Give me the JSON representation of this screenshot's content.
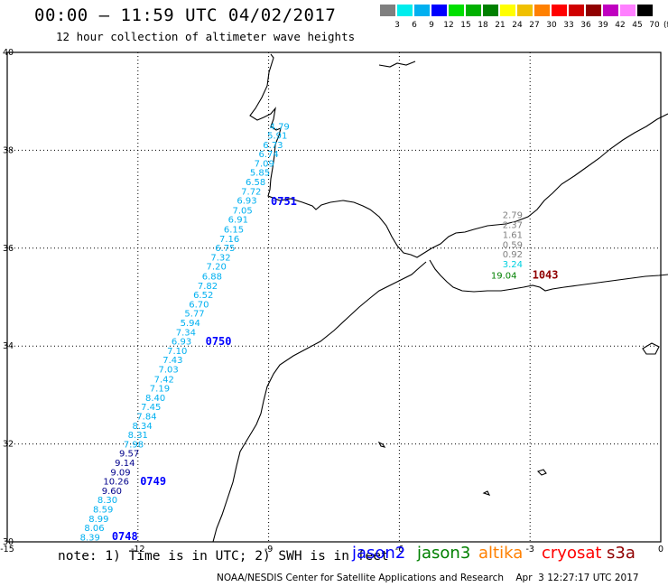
{
  "header": {
    "title": "00:00 – 11:59 UTC 04/02/2017",
    "subtitle": "12 hour collection of altimeter wave heights"
  },
  "legend": {
    "colors": [
      "#7f7f7f",
      "#00eded",
      "#00b0f0",
      "#0000ff",
      "#00e000",
      "#00b000",
      "#008000",
      "#ffff00",
      "#f0c000",
      "#ff8000",
      "#ff0000",
      "#d00000",
      "#900000",
      "#c000c0",
      "#ff80ff",
      "#000000"
    ],
    "labels": [
      "3",
      "6",
      "9",
      "12",
      "15",
      "18",
      "21",
      "24",
      "27",
      "30",
      "33",
      "36",
      "39",
      "42",
      "45",
      "70"
    ],
    "unit": "(ft)"
  },
  "axes": {
    "lon_ticks": [
      "-15",
      "-12",
      "-9",
      "-6",
      "-3",
      "0"
    ],
    "lat_ticks": [
      "40",
      "38",
      "36",
      "34",
      "32",
      "30"
    ],
    "lon_range": [
      -15,
      0
    ],
    "lat_range": [
      30,
      40
    ],
    "grid": true
  },
  "track_colors": {
    "jason2": "#0000ff",
    "jason3": "#008000",
    "altika": "#ff8000",
    "cryosat": "#ff0000",
    "s3a": "#900000",
    "grey": "#7f7f7f",
    "cyan": "#00b0f0",
    "aqua": "#00d0e0",
    "navy": "#00008b"
  },
  "readings": [
    {
      "text": "4.79",
      "lon": -8.75,
      "lat": 38.42,
      "color": "cyan"
    },
    {
      "text": "5.91",
      "lon": -8.8,
      "lat": 38.24,
      "color": "cyan"
    },
    {
      "text": "6.73",
      "lon": -8.9,
      "lat": 38.04,
      "color": "cyan"
    },
    {
      "text": "6.74",
      "lon": -9.0,
      "lat": 37.86,
      "color": "cyan"
    },
    {
      "text": "7.09",
      "lon": -9.1,
      "lat": 37.67,
      "color": "cyan"
    },
    {
      "text": "5.85",
      "lon": -9.2,
      "lat": 37.48,
      "color": "cyan"
    },
    {
      "text": "6.58",
      "lon": -9.3,
      "lat": 37.29,
      "color": "cyan"
    },
    {
      "text": "7.72",
      "lon": -9.4,
      "lat": 37.09,
      "color": "cyan"
    },
    {
      "text": "6.93",
      "lon": -9.5,
      "lat": 36.91,
      "color": "cyan"
    },
    {
      "text": "7.05",
      "lon": -9.6,
      "lat": 36.71,
      "color": "cyan"
    },
    {
      "text": "6.91",
      "lon": -9.7,
      "lat": 36.52,
      "color": "cyan"
    },
    {
      "text": "6.15",
      "lon": -9.8,
      "lat": 36.32,
      "color": "cyan"
    },
    {
      "text": "7.16",
      "lon": -9.9,
      "lat": 36.13,
      "color": "cyan"
    },
    {
      "text": "6.75",
      "lon": -10.0,
      "lat": 35.94,
      "color": "cyan"
    },
    {
      "text": "7.32",
      "lon": -10.1,
      "lat": 35.75,
      "color": "cyan"
    },
    {
      "text": "7.20",
      "lon": -10.2,
      "lat": 35.56,
      "color": "cyan"
    },
    {
      "text": "6.88",
      "lon": -10.3,
      "lat": 35.36,
      "color": "cyan"
    },
    {
      "text": "7.82",
      "lon": -10.4,
      "lat": 35.17,
      "color": "cyan"
    },
    {
      "text": "6.52",
      "lon": -10.5,
      "lat": 34.98,
      "color": "cyan"
    },
    {
      "text": "6.70",
      "lon": -10.6,
      "lat": 34.79,
      "color": "cyan"
    },
    {
      "text": "5.77",
      "lon": -10.7,
      "lat": 34.6,
      "color": "cyan"
    },
    {
      "text": "5.94",
      "lon": -10.8,
      "lat": 34.41,
      "color": "cyan"
    },
    {
      "text": "7.34",
      "lon": -10.9,
      "lat": 34.22,
      "color": "cyan"
    },
    {
      "text": "6.93",
      "lon": -11.0,
      "lat": 34.03,
      "color": "cyan"
    },
    {
      "text": "7.10",
      "lon": -11.1,
      "lat": 33.84,
      "color": "cyan"
    },
    {
      "text": "7.43",
      "lon": -11.2,
      "lat": 33.65,
      "color": "cyan"
    },
    {
      "text": "7.03",
      "lon": -11.3,
      "lat": 33.46,
      "color": "cyan"
    },
    {
      "text": "7.42",
      "lon": -11.4,
      "lat": 33.26,
      "color": "cyan"
    },
    {
      "text": "7.19",
      "lon": -11.5,
      "lat": 33.07,
      "color": "cyan"
    },
    {
      "text": "8.40",
      "lon": -11.6,
      "lat": 32.88,
      "color": "cyan"
    },
    {
      "text": "7.45",
      "lon": -11.7,
      "lat": 32.69,
      "color": "cyan"
    },
    {
      "text": "7.84",
      "lon": -11.8,
      "lat": 32.5,
      "color": "cyan"
    },
    {
      "text": "8.34",
      "lon": -11.9,
      "lat": 32.31,
      "color": "cyan"
    },
    {
      "text": "8.31",
      "lon": -12.0,
      "lat": 32.12,
      "color": "cyan"
    },
    {
      "text": "7.98",
      "lon": -12.1,
      "lat": 31.93,
      "color": "cyan"
    },
    {
      "text": "9.57",
      "lon": -12.2,
      "lat": 31.74,
      "color": "navy"
    },
    {
      "text": "9.14",
      "lon": -12.3,
      "lat": 31.55,
      "color": "navy"
    },
    {
      "text": "9.09",
      "lon": -12.4,
      "lat": 31.36,
      "color": "navy"
    },
    {
      "text": "10.26",
      "lon": -12.5,
      "lat": 31.17,
      "color": "navy"
    },
    {
      "text": "9.60",
      "lon": -12.6,
      "lat": 30.98,
      "color": "navy"
    },
    {
      "text": "8.30",
      "lon": -12.7,
      "lat": 30.79,
      "color": "cyan"
    },
    {
      "text": "8.59",
      "lon": -12.8,
      "lat": 30.6,
      "color": "cyan"
    },
    {
      "text": "8.99",
      "lon": -12.9,
      "lat": 30.41,
      "color": "cyan"
    },
    {
      "text": "8.06",
      "lon": -13.0,
      "lat": 30.22,
      "color": "cyan"
    },
    {
      "text": "8.39",
      "lon": -13.1,
      "lat": 30.03,
      "color": "cyan"
    },
    {
      "text": "2.79",
      "lon": -3.4,
      "lat": 36.61,
      "color": "grey"
    },
    {
      "text": "2.37",
      "lon": -3.4,
      "lat": 36.41,
      "color": "grey"
    },
    {
      "text": "1.61",
      "lon": -3.4,
      "lat": 36.21,
      "color": "grey"
    },
    {
      "text": "0.59",
      "lon": -3.4,
      "lat": 36.01,
      "color": "grey"
    },
    {
      "text": "0.92",
      "lon": -3.4,
      "lat": 35.81,
      "color": "grey"
    },
    {
      "text": "3.24",
      "lon": -3.4,
      "lat": 35.61,
      "color": "aqua"
    },
    {
      "text": "19.04",
      "lon": -3.6,
      "lat": 35.38,
      "color": "jason3"
    }
  ],
  "time_labels": [
    {
      "text": "0751",
      "lon": -8.95,
      "lat": 36.88,
      "color": "jason2"
    },
    {
      "text": "0750",
      "lon": -10.45,
      "lat": 34.02,
      "color": "jason2"
    },
    {
      "text": "0749",
      "lon": -11.95,
      "lat": 31.16,
      "color": "jason2"
    },
    {
      "text": "0748",
      "lon": -12.6,
      "lat": 30.04,
      "color": "jason2"
    },
    {
      "text": "1043",
      "lon": -2.95,
      "lat": 35.38,
      "color": "s3a"
    }
  ],
  "footer": {
    "note": "note: 1) Time is in UTC; 2) SWH is in feet",
    "satellites": [
      {
        "name": "jason2",
        "color": "#0000ff"
      },
      {
        "name": "jason3",
        "color": "#008000"
      },
      {
        "name": "altika",
        "color": "#ff8000"
      },
      {
        "name": "cryosat",
        "color": "#ff0000"
      },
      {
        "name": "s3a",
        "color": "#900000"
      }
    ],
    "credit": "NOAA/NESDIS Center for Satellite Applications and Research    Apr  3 12:27:17 UTC 2017"
  }
}
